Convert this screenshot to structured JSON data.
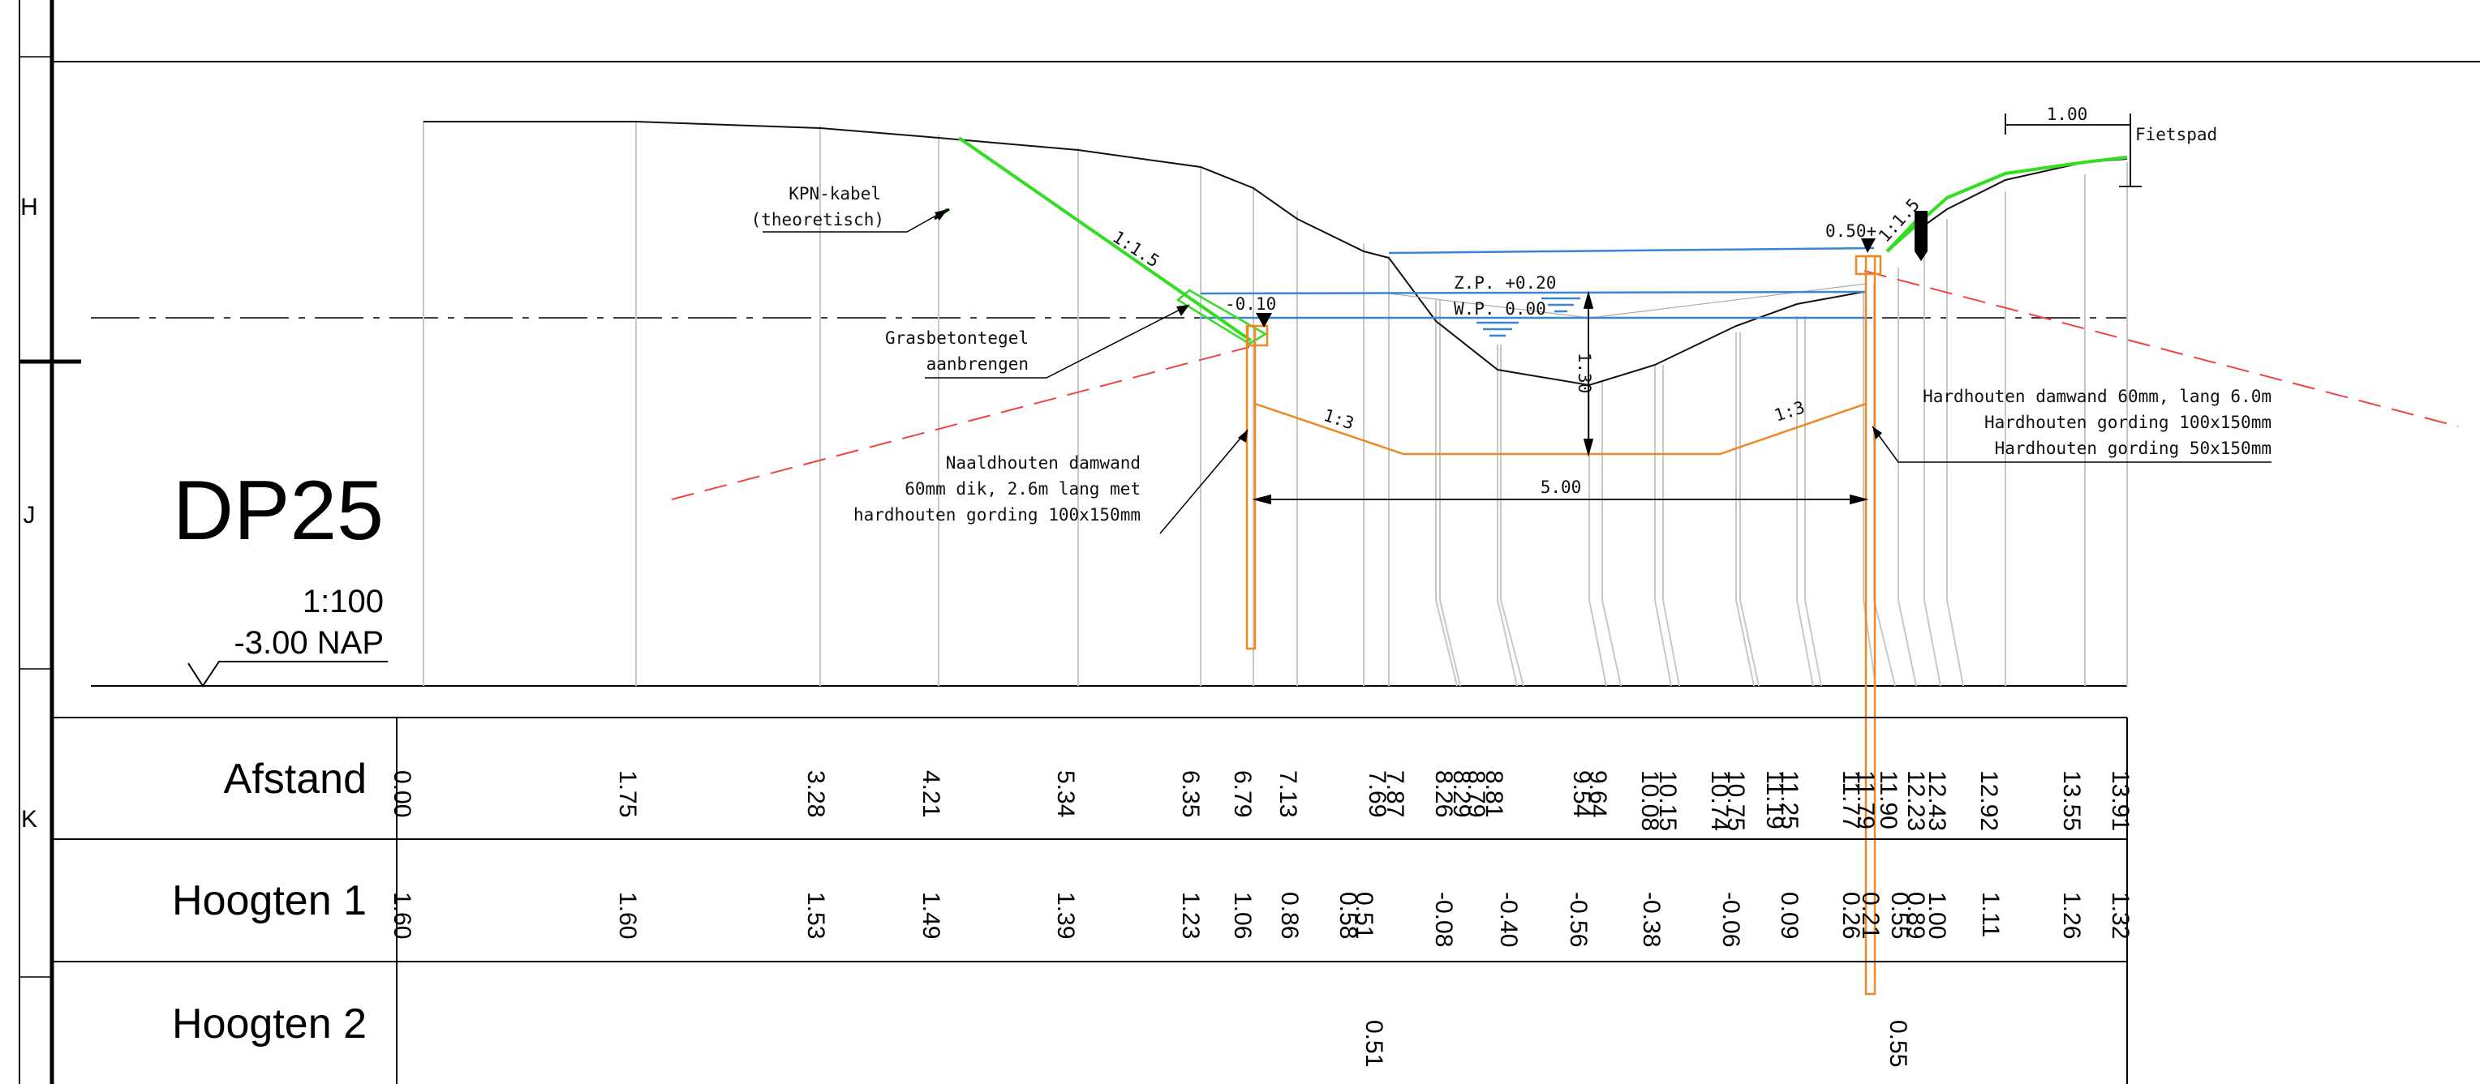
{
  "title": "DP25",
  "scale": "1:100",
  "datum": "-3.00 NAP",
  "row_letters": [
    "H",
    "J",
    "K"
  ],
  "annotations": {
    "kpn_line1": "KPN-kabel",
    "kpn_line2": "(theoretisch)",
    "gras_line1": "Grasbetontegel",
    "gras_line2": "aanbrengen",
    "naald_line1": "Naaldhouten damwand",
    "naald_line2": "60mm dik, 2.6m lang met",
    "naald_line3": "hardhouten gording 100x150mm",
    "hard_line1": "Hardhouten damwand 60mm, lang 6.0m",
    "hard_line2": "Hardhouten gording 100x150mm",
    "hard_line3": "Hardhouten gording 50x150mm",
    "fietspad": "Fietspad",
    "dim_top": "1.00",
    "dim_width": "5.00",
    "dim_depth": "1.30",
    "zp": "Z.P. +0.20",
    "wp": "W.P. 0.00",
    "slope_left": "1:1.5",
    "slope_right": "1:1.5",
    "bottom_slope_left": "1:3",
    "bottom_slope_right": "1:3",
    "level_left": "-0.10",
    "level_right": "0.50+"
  },
  "colors": {
    "profile": "#111111",
    "grid": "#c8c8c8",
    "green": "#33dd22",
    "orange": "#ee8822",
    "blue": "#3a86d4",
    "red": "#ee4444"
  },
  "table": {
    "labels": [
      "Afstand",
      "Hoogten 1",
      "Hoogten 2"
    ],
    "afstand": [
      "0.00",
      "1.75",
      "3.28",
      "4.21",
      "5.34",
      "6.35",
      "6.79",
      "7.13",
      "7.69",
      "7.87",
      "8.26",
      "8.29",
      "8.79",
      "8.81",
      "9.54",
      "9.64",
      "10.08",
      "10.15",
      "10.74",
      "10.75",
      "11.19",
      "11.25",
      "11.77",
      "11.79",
      "11.90",
      "12.23",
      "12.43",
      "12.92",
      "13.55",
      "13.91"
    ],
    "hoogten1": [
      "1.60",
      "1.60",
      "1.53",
      "1.49",
      "1.39",
      "1.23",
      "1.06",
      "0.86",
      "0.58",
      "0.51",
      "-0.08",
      "-0.40",
      "-0.56",
      "-0.38",
      "-0.06",
      "0.09",
      "0.26",
      "0.21",
      "0.55",
      "0.89",
      "1.00",
      "1.11",
      "1.26",
      "1.32"
    ],
    "hoogten2": [
      "0.51",
      "0.55"
    ]
  }
}
